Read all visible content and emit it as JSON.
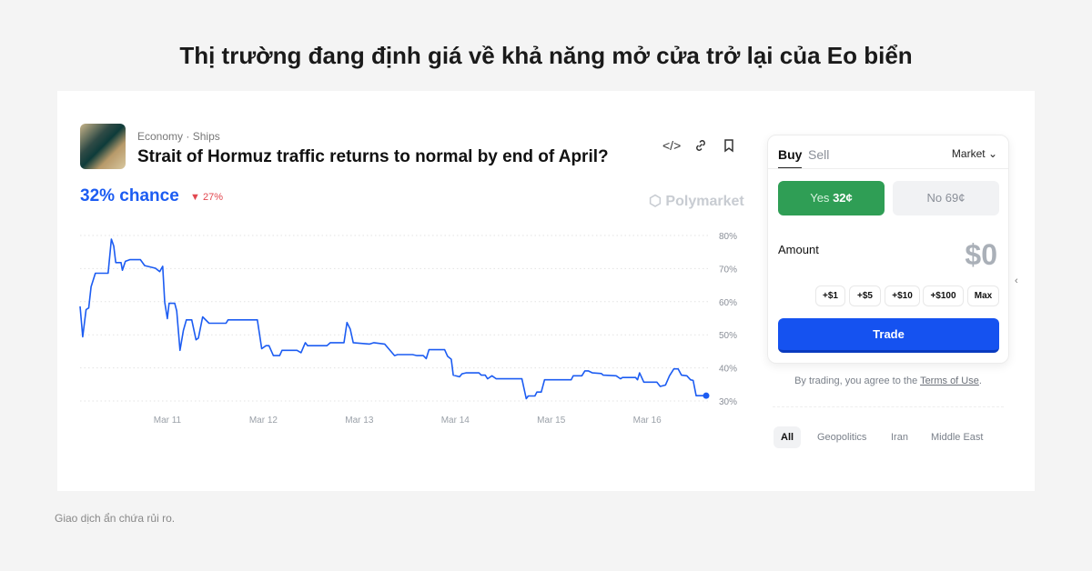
{
  "headline": "Thị trường đang định giá về khả năng mở cửa trở lại của Eo biển",
  "market": {
    "category": "Economy",
    "subcategory": "Ships",
    "separator": "·",
    "title": "Strait of Hormuz traffic returns to normal by end of April?",
    "chance": "32% chance",
    "delta": "27%",
    "delta_direction": "down",
    "brand": "Polymarket",
    "icons": [
      "embed-icon",
      "link-icon",
      "bookmark-icon"
    ]
  },
  "trade_panel": {
    "tabs": [
      "Buy",
      "Sell"
    ],
    "active_tab": "Buy",
    "order_type": "Market",
    "yes_label": "Yes",
    "yes_price": "32¢",
    "no_label": "No",
    "no_price": "69¢",
    "amount_label": "Amount",
    "amount_value": "$0",
    "quick_amounts": [
      "+$1",
      "+$5",
      "+$10",
      "+$100",
      "Max"
    ],
    "trade_label": "Trade",
    "terms_prefix": "By trading, you agree to the ",
    "terms_link": "Terms of Use",
    "terms_suffix": "."
  },
  "tags": [
    "All",
    "Geopolitics",
    "Iran",
    "Middle East"
  ],
  "active_tag": "All",
  "footer": "Giao dịch ẩn chứa rủi ro.",
  "colors": {
    "accent": "#1c5cf2",
    "yes": "#2f9e55",
    "trade": "#1552f0",
    "down": "#e2474f"
  },
  "chart_data": {
    "type": "line",
    "x_ticks": [
      "Mar 11",
      "Mar 12",
      "Mar 13",
      "Mar 14",
      "Mar 15",
      "Mar 16"
    ],
    "y_ticks": [
      "30%",
      "40%",
      "50%",
      "60%",
      "70%",
      "80%"
    ],
    "ylim": [
      30,
      80
    ],
    "xlim": [
      "Mar 10 02:10",
      "Mar 16 14:45"
    ],
    "grid": "horizontal dotted",
    "line_color": "#1c5cf2",
    "x": [
      "Mar 10 02:10",
      "Mar 10 02:50",
      "Mar 10 03:40",
      "Mar 10 04:20",
      "Mar 10 04:55",
      "Mar 10 06:00",
      "Mar 10 09:10",
      "Mar 10 10:00",
      "Mar 10 10:35",
      "Mar 10 11:05",
      "Mar 10 12:25",
      "Mar 10 12:45",
      "Mar 10 13:30",
      "Mar 10 14:35",
      "Mar 10 17:15",
      "Mar 10 18:20",
      "Mar 10 21:00",
      "Mar 10 22:05",
      "Mar 10 22:50",
      "Mar 10 23:20",
      "Mar 11 00:00",
      "Mar 11 00:25",
      "Mar 11 01:50",
      "Mar 11 02:20",
      "Mar 11 03:10",
      "Mar 11 04:00",
      "Mar 11 04:45",
      "Mar 11 06:05",
      "Mar 11 07:10",
      "Mar 11 07:45",
      "Mar 11 08:50",
      "Mar 11 10:25",
      "Mar 11 14:40",
      "Mar 11 15:10",
      "Mar 11 22:30",
      "Mar 11 23:35",
      "Mar 12 00:40",
      "Mar 12 01:25",
      "Mar 12 02:30",
      "Mar 12 04:05",
      "Mar 12 04:40",
      "Mar 12 08:25",
      "Mar 12 09:25",
      "Mar 12 10:30",
      "Mar 12 11:05",
      "Mar 12 15:55",
      "Mar 12 16:45",
      "Mar 12 20:10",
      "Mar 12 20:55",
      "Mar 12 21:45",
      "Mar 12 22:30",
      "Mar 13 02:35",
      "Mar 13 03:40",
      "Mar 13 06:20",
      "Mar 13 08:50",
      "Mar 13 09:35",
      "Mar 13 13:20",
      "Mar 13 14:25",
      "Mar 13 16:00",
      "Mar 13 16:45",
      "Mar 13 17:25",
      "Mar 13 21:20",
      "Mar 13 22:05",
      "Mar 13 23:00",
      "Mar 13 23:30",
      "Mar 14 01:05",
      "Mar 14 01:40",
      "Mar 14 02:40",
      "Mar 14 05:55",
      "Mar 14 06:30",
      "Mar 14 07:30",
      "Mar 14 08:05",
      "Mar 14 09:10",
      "Mar 14 10:15",
      "Mar 14 16:40",
      "Mar 14 17:45",
      "Mar 14 18:15",
      "Mar 14 19:55",
      "Mar 14 20:25",
      "Mar 14 21:30",
      "Mar 14 22:20",
      "Mar 15 05:00",
      "Mar 15 05:30",
      "Mar 15 07:40",
      "Mar 15 08:25",
      "Mar 15 09:15",
      "Mar 15 10:20",
      "Mar 15 12:30",
      "Mar 15 13:00",
      "Mar 15 16:15",
      "Mar 15 17:20",
      "Mar 15 17:50",
      "Mar 15 21:05",
      "Mar 15 21:35",
      "Mar 15 22:05",
      "Mar 15 23:10",
      "Mar 16 02:25",
      "Mar 16 03:15",
      "Mar 16 04:35",
      "Mar 16 05:35",
      "Mar 16 06:40",
      "Mar 16 07:45",
      "Mar 16 08:35",
      "Mar 16 09:55",
      "Mar 16 10:50",
      "Mar 16 11:30",
      "Mar 16 12:15",
      "Mar 16 14:45"
    ],
    "y": [
      58.6,
      49.4,
      57.6,
      58.1,
      64.5,
      68.6,
      68.6,
      78.9,
      76.8,
      71.8,
      71.8,
      69.5,
      72.2,
      72.7,
      72.7,
      70.9,
      70.1,
      69.1,
      70.7,
      59.9,
      54.9,
      59.5,
      59.5,
      57.2,
      45.3,
      51.3,
      54.5,
      54.5,
      48.5,
      49.0,
      55.4,
      53.5,
      53.5,
      54.5,
      54.5,
      45.8,
      46.7,
      46.7,
      43.7,
      43.7,
      45.3,
      45.3,
      44.6,
      47.6,
      46.7,
      46.7,
      47.6,
      47.6,
      53.7,
      51.7,
      47.6,
      47.2,
      47.6,
      47.2,
      43.7,
      44.0,
      44.0,
      43.7,
      43.7,
      42.8,
      45.5,
      45.5,
      43.5,
      42.6,
      37.8,
      37.3,
      38.2,
      38.5,
      38.5,
      37.8,
      37.8,
      36.7,
      37.6,
      36.7,
      36.7,
      30.7,
      31.5,
      31.5,
      32.7,
      32.7,
      36.4,
      36.4,
      37.6,
      37.6,
      39.1,
      39.1,
      38.5,
      38.3,
      37.8,
      37.6,
      36.7,
      37.1,
      37.1,
      36.4,
      38.5,
      35.7,
      35.7,
      34.4,
      34.8,
      37.6,
      39.7,
      39.7,
      37.8,
      37.6,
      36.4,
      36.2,
      31.6,
      31.6
    ]
  }
}
